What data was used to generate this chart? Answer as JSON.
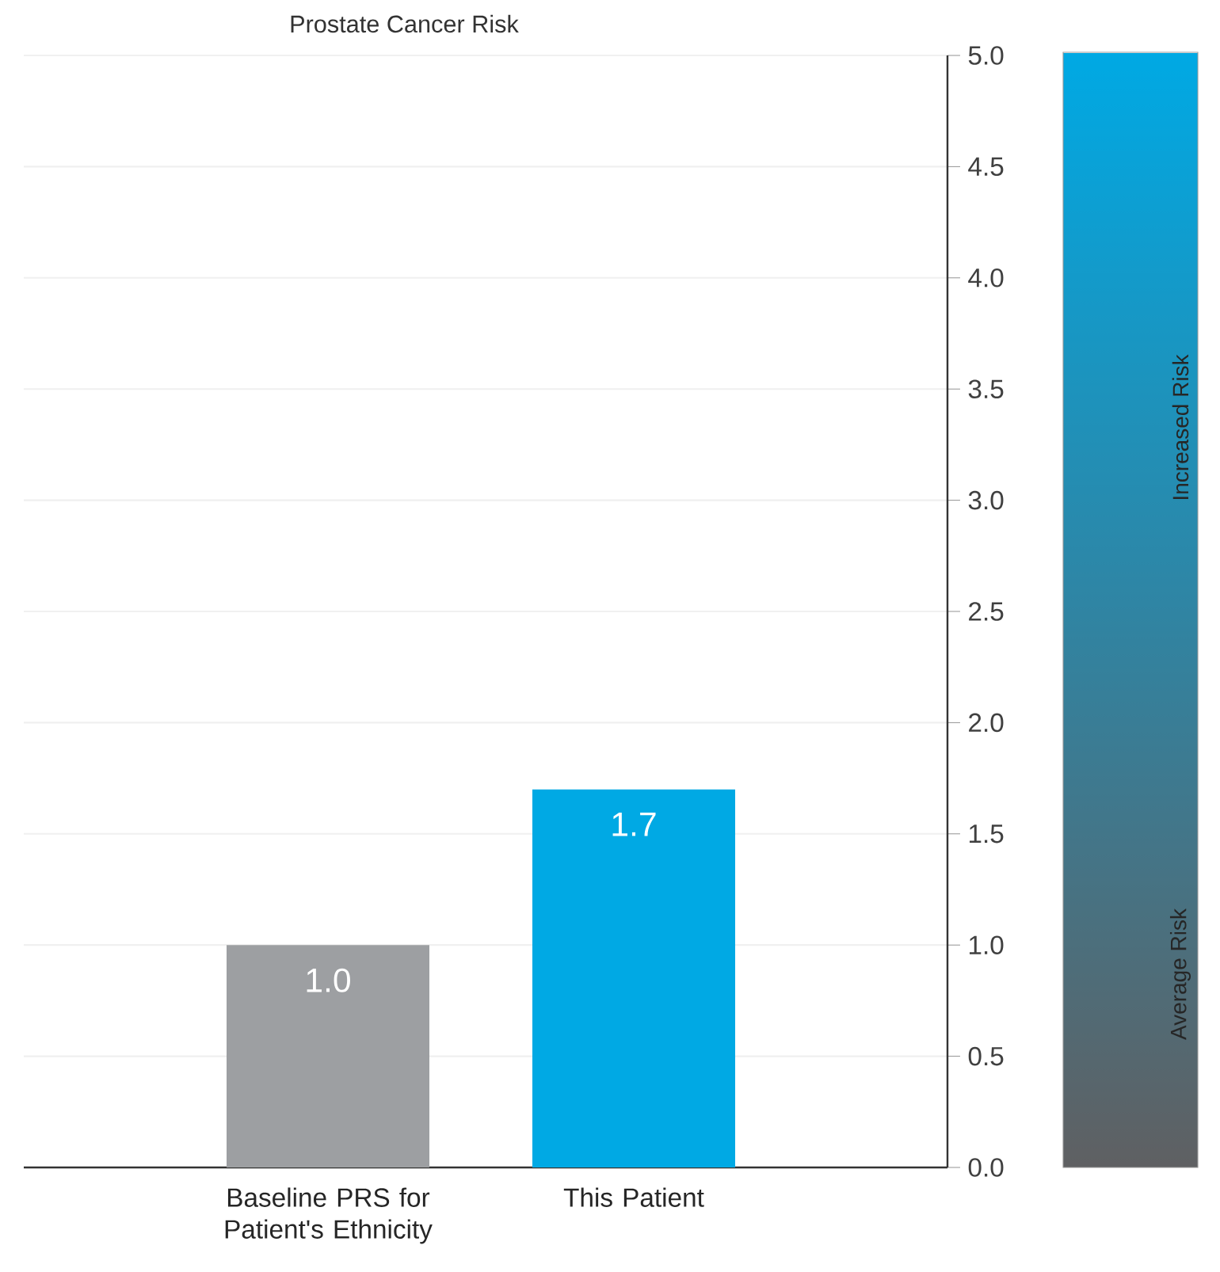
{
  "chart_data": {
    "type": "bar",
    "title": "Prostate Cancer Risk",
    "categories": [
      "Baseline PRS for Patient's Ethnicity",
      "This Patient"
    ],
    "values": [
      1.0,
      1.7
    ],
    "colors": [
      "#9d9fa2",
      "#00a9e4"
    ],
    "value_labels": [
      "1.0",
      "1.7"
    ],
    "ylim": [
      0,
      5
    ],
    "yticks": [
      {
        "value": 0,
        "label": "0.0"
      },
      {
        "value": 0.5,
        "label": "0.5"
      },
      {
        "value": 1,
        "label": "1.0"
      },
      {
        "value": 1.5,
        "label": "1.5"
      },
      {
        "value": 2,
        "label": "2.0"
      },
      {
        "value": 2.5,
        "label": "2.5"
      },
      {
        "value": 3,
        "label": "3.0"
      },
      {
        "value": 3.5,
        "label": "3.5"
      },
      {
        "value": 4,
        "label": "4.0"
      },
      {
        "value": 4.5,
        "label": "4.5"
      },
      {
        "value": 5,
        "label": "5.0"
      }
    ],
    "grid": "y",
    "annotations": [
      "Increased Risk",
      "Average Risk"
    ]
  }
}
